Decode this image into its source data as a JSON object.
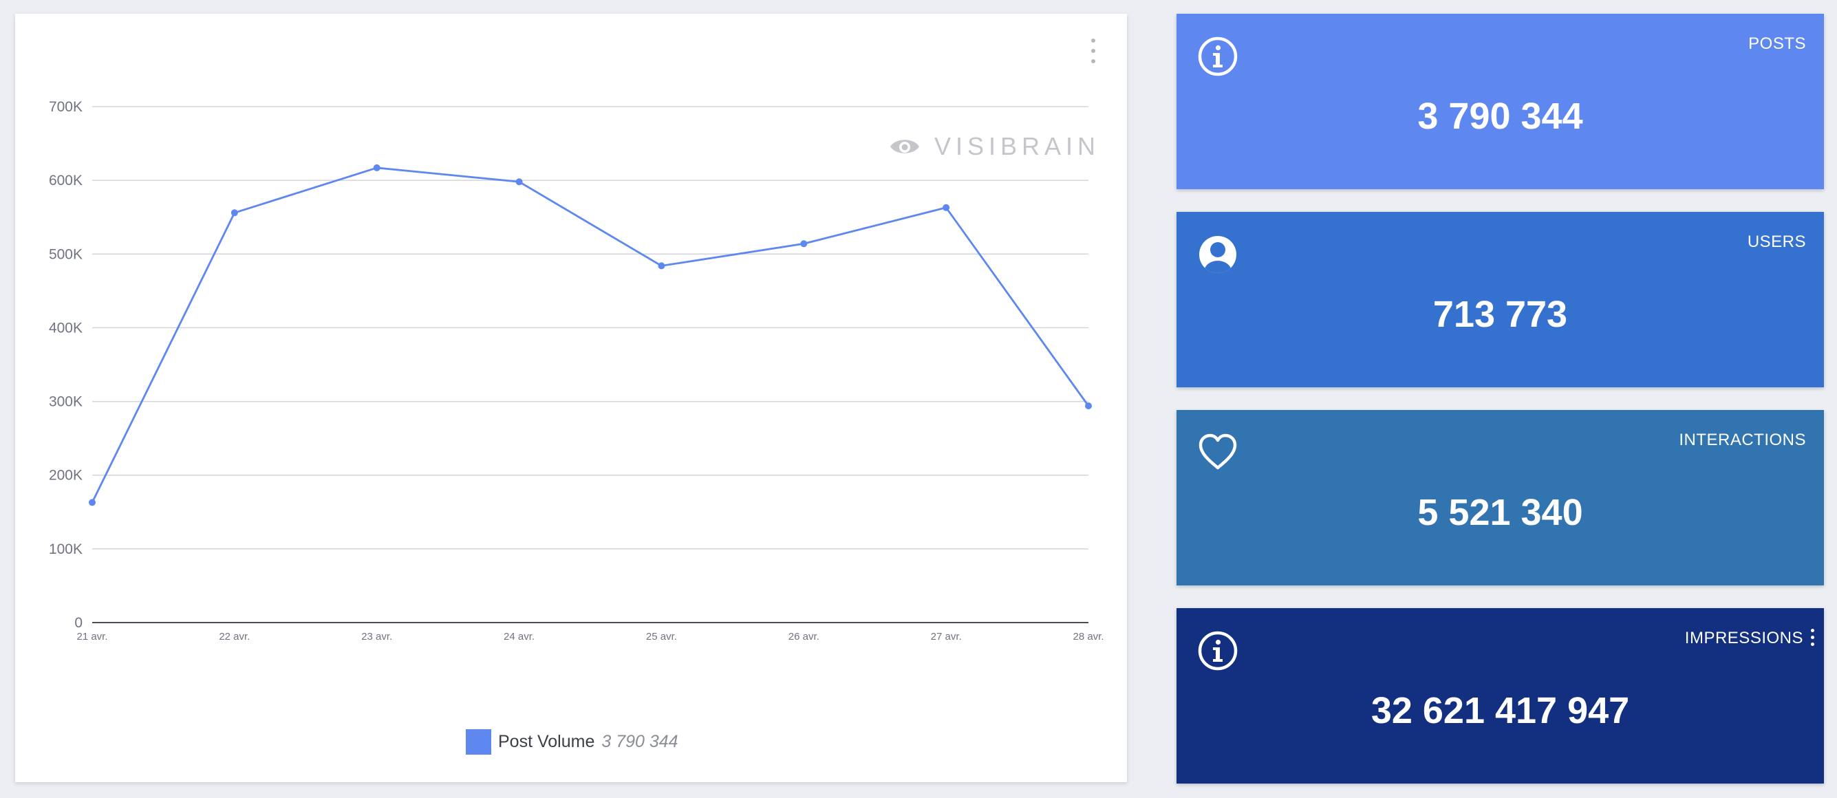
{
  "chart_card": {
    "watermark": "VISIBRAIN",
    "legend": {
      "label": "Post Volume",
      "value": "3 790 344",
      "color": "#5f87f0"
    }
  },
  "chart_data": {
    "type": "line",
    "title": "",
    "xlabel": "",
    "ylabel": "",
    "categories": [
      "21 avr.",
      "22 avr.",
      "23 avr.",
      "24 avr.",
      "25 avr.",
      "26 avr.",
      "27 avr.",
      "28 avr."
    ],
    "series": [
      {
        "name": "Post Volume",
        "color": "#5f87f0",
        "values": [
          163000,
          556000,
          617000,
          598000,
          484000,
          514000,
          563000,
          294000
        ]
      }
    ],
    "ylim": [
      0,
      700000
    ],
    "yticks": [
      0,
      100000,
      200000,
      300000,
      400000,
      500000,
      600000,
      700000
    ],
    "ytick_labels": [
      "0",
      "100K",
      "200K",
      "300K",
      "400K",
      "500K",
      "600K",
      "700K"
    ],
    "grid": true,
    "legend_position": "bottom-center"
  },
  "stats": [
    {
      "label": "POSTS",
      "value": "3 790 344",
      "icon": "info-icon",
      "color": "#5f87f0"
    },
    {
      "label": "USERS",
      "value": "713 773",
      "icon": "user-circle-icon",
      "color": "#3571cf"
    },
    {
      "label": "INTERACTIONS",
      "value": "5 521 340",
      "icon": "heart-icon",
      "color": "#3174b0"
    },
    {
      "label": "IMPRESSIONS",
      "value": "32 621 417 947",
      "icon": "info-icon",
      "color": "#12307f"
    }
  ]
}
